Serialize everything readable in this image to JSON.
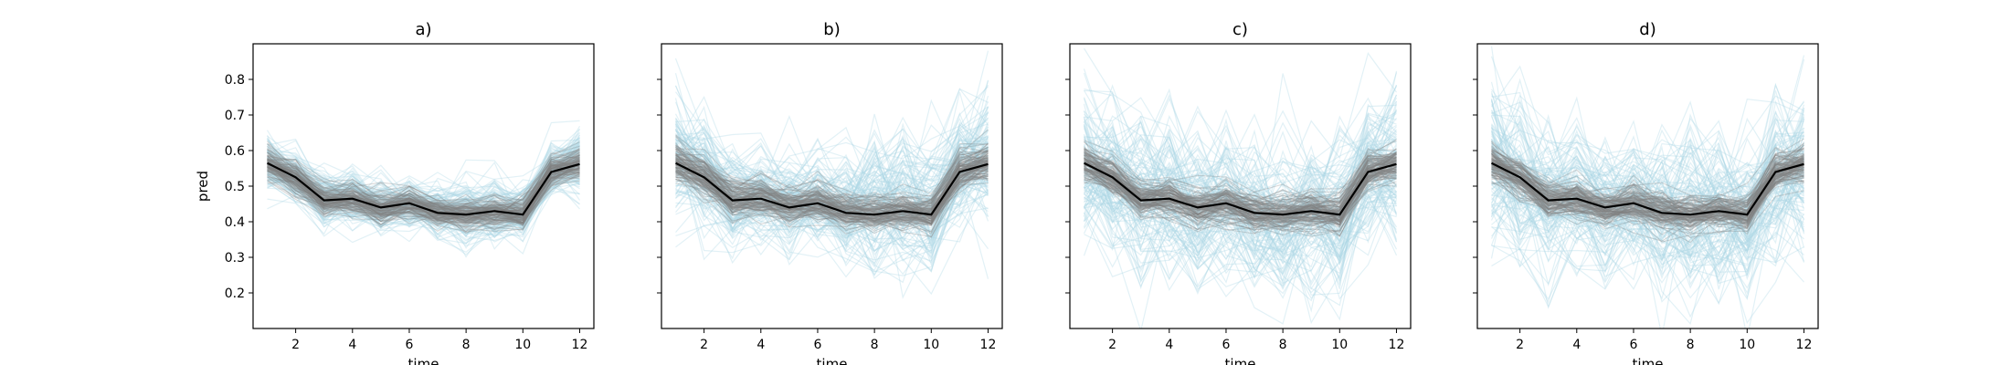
{
  "chart_data": [
    {
      "type": "line",
      "title": "a)",
      "xlabel": "time",
      "ylabel": "pred",
      "xlim": [
        0.5,
        12.5
      ],
      "ylim": [
        0.1,
        0.9
      ],
      "xticks": [
        2,
        4,
        6,
        8,
        10,
        12
      ],
      "yticks": [
        0.2,
        0.3,
        0.4,
        0.5,
        0.6,
        0.7,
        0.8
      ],
      "ytick_labels_shown": true,
      "x": [
        1,
        2,
        3,
        4,
        5,
        6,
        7,
        8,
        9,
        10,
        11,
        12
      ],
      "series": [
        {
          "role": "mean",
          "color": "#000000",
          "values": [
            0.565,
            0.525,
            0.46,
            0.465,
            0.44,
            0.452,
            0.425,
            0.42,
            0.43,
            0.42,
            0.54,
            0.562
          ]
        },
        {
          "role": "sample-band",
          "color": "#808080",
          "count": 120,
          "spread": [
            0.03,
            0.03,
            0.03,
            0.03,
            0.03,
            0.03,
            0.03,
            0.03,
            0.03,
            0.03,
            0.03,
            0.03
          ]
        },
        {
          "role": "sample-band",
          "color": "#add8e6",
          "count": 120,
          "spread": [
            0.045,
            0.04,
            0.04,
            0.04,
            0.04,
            0.04,
            0.04,
            0.05,
            0.05,
            0.045,
            0.04,
            0.05
          ]
        }
      ]
    },
    {
      "type": "line",
      "title": "b)",
      "xlabel": "time",
      "ylabel": "",
      "xlim": [
        0.5,
        12.5
      ],
      "ylim": [
        0.1,
        0.9
      ],
      "xticks": [
        2,
        4,
        6,
        8,
        10,
        12
      ],
      "yticks": [
        0.2,
        0.3,
        0.4,
        0.5,
        0.6,
        0.7,
        0.8
      ],
      "ytick_labels_shown": false,
      "x": [
        1,
        2,
        3,
        4,
        5,
        6,
        7,
        8,
        9,
        10,
        11,
        12
      ],
      "series": [
        {
          "role": "mean",
          "color": "#000000",
          "values": [
            0.565,
            0.525,
            0.46,
            0.465,
            0.44,
            0.452,
            0.425,
            0.42,
            0.43,
            0.42,
            0.54,
            0.562
          ]
        },
        {
          "role": "sample-band",
          "color": "#808080",
          "count": 120,
          "spread": [
            0.035,
            0.035,
            0.035,
            0.035,
            0.035,
            0.035,
            0.035,
            0.035,
            0.035,
            0.035,
            0.035,
            0.035
          ]
        },
        {
          "role": "sample-band",
          "color": "#add8e6",
          "count": 120,
          "spread": [
            0.09,
            0.08,
            0.07,
            0.065,
            0.065,
            0.07,
            0.08,
            0.1,
            0.11,
            0.1,
            0.09,
            0.1
          ]
        }
      ]
    },
    {
      "type": "line",
      "title": "c)",
      "xlabel": "time",
      "ylabel": "",
      "xlim": [
        0.5,
        12.5
      ],
      "ylim": [
        0.1,
        0.9
      ],
      "xticks": [
        2,
        4,
        6,
        8,
        10,
        12
      ],
      "yticks": [
        0.2,
        0.3,
        0.4,
        0.5,
        0.6,
        0.7,
        0.8
      ],
      "ytick_labels_shown": false,
      "x": [
        1,
        2,
        3,
        4,
        5,
        6,
        7,
        8,
        9,
        10,
        11,
        12
      ],
      "series": [
        {
          "role": "mean",
          "color": "#000000",
          "values": [
            0.565,
            0.525,
            0.46,
            0.465,
            0.44,
            0.452,
            0.425,
            0.42,
            0.43,
            0.42,
            0.54,
            0.562
          ]
        },
        {
          "role": "sample-band",
          "color": "#808080",
          "count": 120,
          "spread": [
            0.035,
            0.035,
            0.035,
            0.035,
            0.035,
            0.035,
            0.035,
            0.035,
            0.035,
            0.035,
            0.035,
            0.035
          ]
        },
        {
          "role": "sample-band",
          "color": "#add8e6",
          "count": 120,
          "spread": [
            0.11,
            0.11,
            0.11,
            0.11,
            0.11,
            0.11,
            0.11,
            0.11,
            0.11,
            0.11,
            0.11,
            0.11
          ]
        }
      ]
    },
    {
      "type": "line",
      "title": "d)",
      "xlabel": "time",
      "ylabel": "",
      "xlim": [
        0.5,
        12.5
      ],
      "ylim": [
        0.1,
        0.9
      ],
      "xticks": [
        2,
        4,
        6,
        8,
        10,
        12
      ],
      "yticks": [
        0.2,
        0.3,
        0.4,
        0.5,
        0.6,
        0.7,
        0.8
      ],
      "ytick_labels_shown": false,
      "x": [
        1,
        2,
        3,
        4,
        5,
        6,
        7,
        8,
        9,
        10,
        11,
        12
      ],
      "series": [
        {
          "role": "mean",
          "color": "#000000",
          "values": [
            0.565,
            0.525,
            0.46,
            0.465,
            0.44,
            0.452,
            0.425,
            0.42,
            0.43,
            0.42,
            0.54,
            0.562
          ]
        },
        {
          "role": "sample-band",
          "color": "#808080",
          "count": 120,
          "spread": [
            0.035,
            0.035,
            0.035,
            0.035,
            0.035,
            0.035,
            0.035,
            0.035,
            0.035,
            0.035,
            0.035,
            0.035
          ]
        },
        {
          "role": "sample-band",
          "color": "#add8e6",
          "count": 120,
          "spread": [
            0.13,
            0.12,
            0.11,
            0.1,
            0.1,
            0.1,
            0.11,
            0.12,
            0.12,
            0.12,
            0.12,
            0.13
          ]
        }
      ]
    }
  ]
}
